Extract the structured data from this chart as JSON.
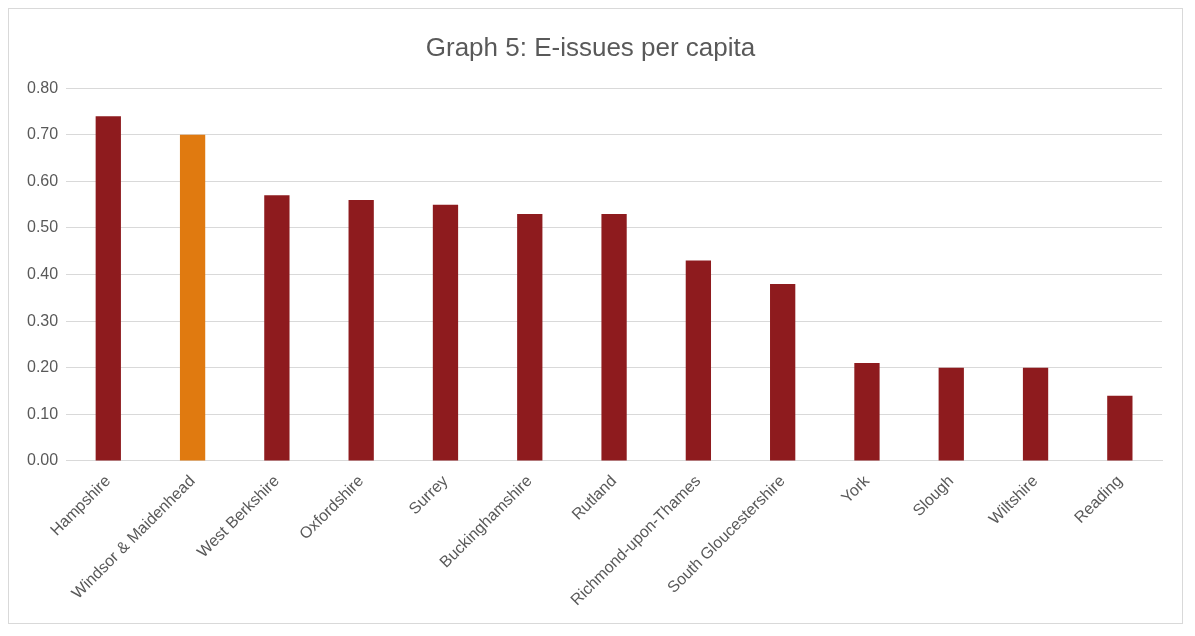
{
  "chart_data": {
    "type": "bar",
    "title": "Graph 5: E-issues per capita",
    "categories": [
      "Hampshire",
      "Windsor & Maidenhead",
      "West Berkshire",
      "Oxfordshire",
      "Surrey",
      "Buckinghamshire",
      "Rutland",
      "Richmond-upon-Thames",
      "South Gloucestershire",
      "York",
      "Slough",
      "Wiltshire",
      "Reading"
    ],
    "values": [
      0.74,
      0.7,
      0.57,
      0.56,
      0.55,
      0.53,
      0.53,
      0.43,
      0.38,
      0.21,
      0.2,
      0.2,
      0.14
    ],
    "colors": [
      "#8e1b1e",
      "#e07a10",
      "#8e1b1e",
      "#8e1b1e",
      "#8e1b1e",
      "#8e1b1e",
      "#8e1b1e",
      "#8e1b1e",
      "#8e1b1e",
      "#8e1b1e",
      "#8e1b1e",
      "#8e1b1e",
      "#8e1b1e"
    ],
    "ylim": [
      0,
      0.8
    ],
    "yticks": [
      {
        "value": 0,
        "label": "0.00"
      },
      {
        "value": 0.1,
        "label": "0.10"
      },
      {
        "value": 0.2,
        "label": "0.20"
      },
      {
        "value": 0.3,
        "label": "0.30"
      },
      {
        "value": 0.4,
        "label": "0.40"
      },
      {
        "value": 0.5,
        "label": "0.50"
      },
      {
        "value": 0.6,
        "label": "0.60"
      },
      {
        "value": 0.7,
        "label": "0.70"
      },
      {
        "value": 0.8,
        "label": "0.80"
      }
    ],
    "grid": "y"
  }
}
